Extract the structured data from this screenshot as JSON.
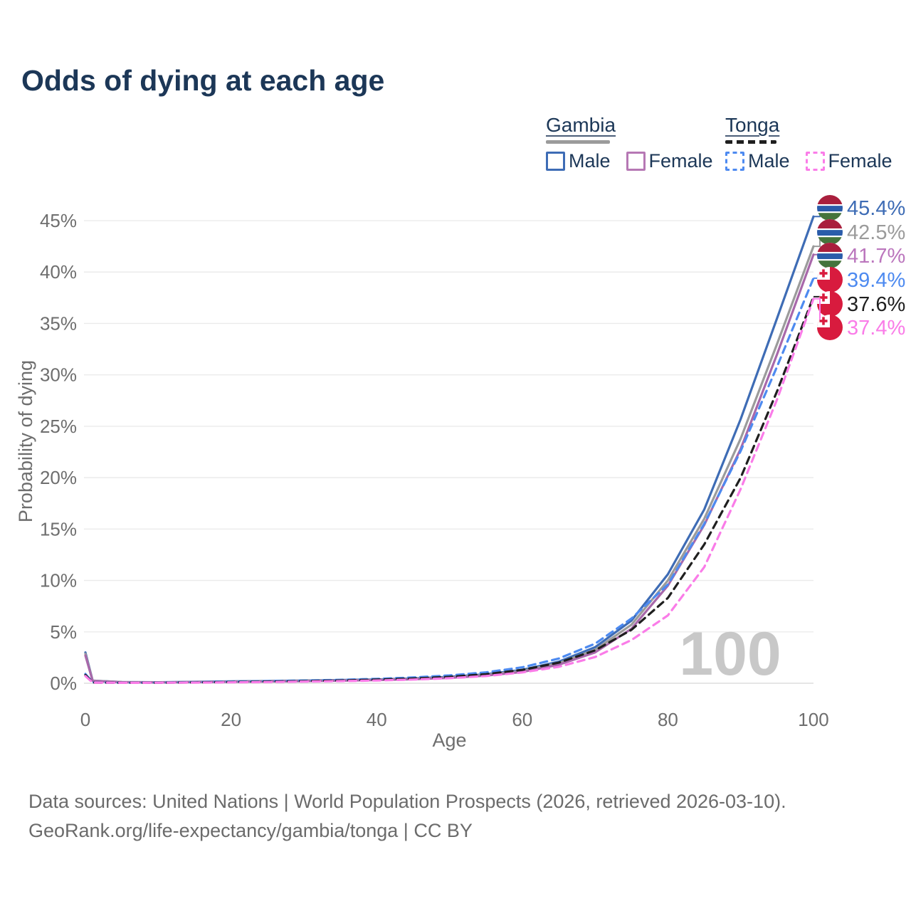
{
  "header": {
    "title": "Odds of dying at each age"
  },
  "legend": {
    "groups": [
      {
        "title": "Gambia",
        "line_style": "solid",
        "bar_color": "#9b9b9b",
        "items": [
          {
            "label": "Male",
            "color": "#3e6cb5"
          },
          {
            "label": "Female",
            "color": "#b678b4"
          }
        ]
      },
      {
        "title": "Tonga",
        "line_style": "dashed",
        "bar_color": "#1f1f1f",
        "items": [
          {
            "label": "Male",
            "color": "#4d8af0"
          },
          {
            "label": "Female",
            "color": "#fa7ce8"
          }
        ]
      }
    ]
  },
  "axes": {
    "y": {
      "title": "Probability of dying",
      "tick_labels": [
        "0%",
        "5%",
        "10%",
        "15%",
        "20%",
        "25%",
        "30%",
        "35%",
        "40%",
        "45%"
      ],
      "tick_values": [
        0,
        5,
        10,
        15,
        20,
        25,
        30,
        35,
        40,
        45
      ]
    },
    "x": {
      "title": "Age",
      "tick_labels": [
        "0",
        "20",
        "40",
        "60",
        "80",
        "100"
      ],
      "tick_values": [
        0,
        20,
        40,
        60,
        80,
        100
      ]
    }
  },
  "watermark": {
    "text": "100",
    "color": "#c8c8c8"
  },
  "footer": {
    "line1": "Data sources: United Nations | World Population Prospects (2026, retrieved 2026-03-10).",
    "line2": "GeoRank.org/life-expectancy/gambia/tonga | CC BY"
  },
  "colors": {
    "grid": "#ebebeb",
    "axis_text": "#6e6e6e",
    "title_text": "#1c3757",
    "gambia_flag": {
      "red": "#a91f3d",
      "blue": "#2a5caa",
      "green": "#45743c",
      "white": "#ffffff"
    },
    "tonga_flag": {
      "red": "#d81b3e",
      "white": "#ffffff"
    }
  },
  "chart_data": {
    "type": "line",
    "title": "Odds of dying at each age",
    "xlabel": "Age",
    "ylabel": "Probability of dying",
    "xlim": [
      0,
      100
    ],
    "ylim_pct": [
      0,
      47
    ],
    "grid": "horizontal",
    "legend_position": "top-right",
    "x": [
      0,
      1,
      5,
      10,
      15,
      20,
      25,
      30,
      35,
      40,
      45,
      50,
      55,
      60,
      65,
      70,
      75,
      80,
      85,
      90,
      95,
      100
    ],
    "series": [
      {
        "id": "gambia-male",
        "name": "Gambia Male",
        "country": "Gambia",
        "sex": "male",
        "color": "#3e6cb5",
        "dash": "solid",
        "flag": "gambia",
        "end_label": "45.4%",
        "end_value": 45.4,
        "label_color": "#3e6cb5",
        "values": [
          3.0,
          0.25,
          0.12,
          0.1,
          0.14,
          0.18,
          0.22,
          0.26,
          0.31,
          0.37,
          0.47,
          0.62,
          0.88,
          1.3,
          2.1,
          3.5,
          6.1,
          10.6,
          16.9,
          25.7,
          35.5,
          45.4
        ]
      },
      {
        "id": "gambia-total",
        "name": "Gambia",
        "country": "Gambia",
        "sex": "both",
        "color": "#9b9b9b",
        "dash": "solid",
        "flag": "gambia",
        "end_label": "42.5%",
        "end_value": 42.5,
        "label_color": "#9b9b9b",
        "values": [
          2.85,
          0.24,
          0.11,
          0.09,
          0.12,
          0.16,
          0.2,
          0.24,
          0.28,
          0.34,
          0.43,
          0.57,
          0.81,
          1.2,
          1.95,
          3.25,
          5.7,
          10.0,
          16.0,
          23.8,
          33.0,
          42.5
        ]
      },
      {
        "id": "gambia-female",
        "name": "Gambia Female",
        "country": "Gambia",
        "sex": "female",
        "color": "#a868aa",
        "dash": "solid",
        "flag": "gambia",
        "end_label": "41.7%",
        "end_value": 41.7,
        "label_color": "#bb76bd",
        "values": [
          2.7,
          0.22,
          0.1,
          0.08,
          0.11,
          0.14,
          0.17,
          0.21,
          0.25,
          0.31,
          0.39,
          0.52,
          0.74,
          1.1,
          1.8,
          3.0,
          5.3,
          9.5,
          15.4,
          22.8,
          32.0,
          41.7
        ]
      },
      {
        "id": "tonga-male",
        "name": "Tonga Male",
        "country": "Tonga",
        "sex": "male",
        "color": "#4d8af0",
        "dash": "dashed",
        "flag": "tonga",
        "end_label": "39.4%",
        "end_value": 39.4,
        "label_color": "#4d8af0",
        "values": [
          0.9,
          0.08,
          0.05,
          0.06,
          0.1,
          0.15,
          0.2,
          0.26,
          0.33,
          0.43,
          0.56,
          0.76,
          1.06,
          1.55,
          2.4,
          3.85,
          6.3,
          9.6,
          15.5,
          22.6,
          30.8,
          39.4
        ]
      },
      {
        "id": "tonga-total",
        "name": "Tonga",
        "country": "Tonga",
        "sex": "both",
        "color": "#1f1f1f",
        "dash": "dashed",
        "flag": "tonga",
        "end_label": "37.6%",
        "end_value": 37.6,
        "label_color": "#1f1f1f",
        "values": [
          0.8,
          0.07,
          0.05,
          0.05,
          0.08,
          0.12,
          0.16,
          0.21,
          0.27,
          0.35,
          0.46,
          0.62,
          0.88,
          1.3,
          2.0,
          3.2,
          5.2,
          8.3,
          13.5,
          20.0,
          28.4,
          37.6
        ]
      },
      {
        "id": "tonga-female",
        "name": "Tonga Female",
        "country": "Tonga",
        "sex": "female",
        "color": "#fa7ce8",
        "dash": "dashed",
        "flag": "tonga",
        "end_label": "37.4%",
        "end_value": 37.4,
        "label_color": "#fa7ce8",
        "values": [
          0.7,
          0.06,
          0.04,
          0.05,
          0.06,
          0.09,
          0.12,
          0.16,
          0.21,
          0.27,
          0.36,
          0.49,
          0.7,
          1.05,
          1.6,
          2.55,
          4.2,
          6.6,
          11.3,
          18.9,
          27.6,
          37.4
        ]
      }
    ]
  }
}
